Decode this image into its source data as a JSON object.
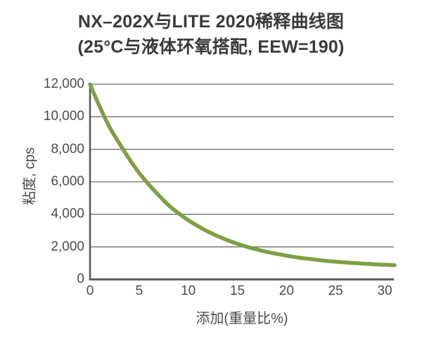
{
  "title": {
    "line1": "NX–202X与LITE 2020稀释曲线图",
    "line2": "(25°C与液体环氧搭配, EEW=190)"
  },
  "chart_data": {
    "type": "line",
    "title": "NX–202X与LITE 2020稀释曲线图 (25°C与液体环氧搭配, EEW=190)",
    "xlabel": "添加(重量比%)",
    "ylabel": "粘度, cps",
    "xlim": [
      0,
      31
    ],
    "ylim": [
      0,
      12000
    ],
    "grid": "horizontal",
    "legend": "none",
    "x_ticks": {
      "values": [
        0,
        5,
        10,
        15,
        20,
        25,
        30
      ],
      "labels": [
        "0",
        "5",
        "10",
        "15",
        "20",
        "25",
        "30"
      ]
    },
    "y_ticks": {
      "values": [
        0,
        2000,
        4000,
        6000,
        8000,
        10000,
        12000
      ],
      "labels": [
        "0",
        "2,000",
        "4,000",
        "6,000",
        "8,000",
        "10,000",
        "12,000"
      ]
    },
    "series": [
      {
        "x": [
          0,
          1,
          2,
          3,
          4,
          5,
          6,
          7,
          8,
          9,
          10,
          11,
          12,
          13,
          14,
          15,
          16,
          17,
          18,
          19,
          20,
          21,
          22,
          23,
          24,
          25,
          26,
          27,
          28,
          29,
          30,
          31
        ],
        "y": [
          12000,
          10600,
          9350,
          8350,
          7400,
          6550,
          5820,
          5170,
          4560,
          4070,
          3640,
          3270,
          2940,
          2660,
          2410,
          2190,
          2000,
          1840,
          1690,
          1570,
          1460,
          1360,
          1280,
          1210,
          1140,
          1090,
          1040,
          1000,
          960,
          925,
          900,
          875
        ]
      }
    ],
    "colors": {
      "line": "#7da044",
      "grid": "#6f6f6f",
      "axis": "#58595b",
      "tick_text": "#4b4b4d",
      "title_text": "#3a3a3c",
      "background": "#ffffff"
    }
  }
}
